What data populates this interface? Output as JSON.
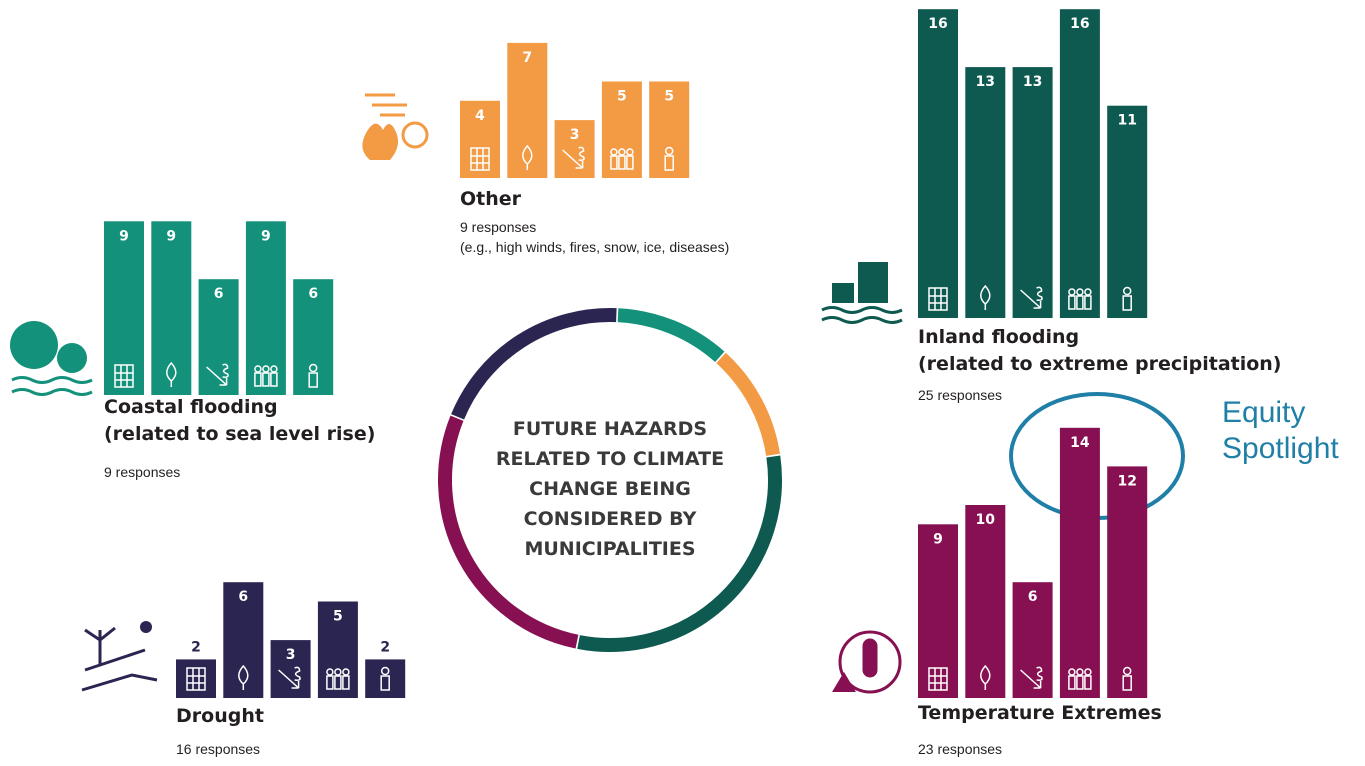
{
  "chart_data": [
    {
      "type": "pie",
      "title": [
        "FUTURE HAZARDS",
        "RELATED TO CLIMATE",
        "CHANGE BEING",
        "CONSIDERED BY",
        "MUNICIPALITIES"
      ],
      "values": [
        9,
        25,
        23,
        16,
        9
      ],
      "value_labels": [
        "9 responses",
        "25 responses",
        "23 responses",
        "16 responses",
        "9 responses"
      ],
      "colors": [
        "#f39a45",
        "#0e5a50",
        "#861052",
        "#2b2552",
        "#14917b"
      ]
    },
    {
      "type": "bar",
      "title": [
        "Other"
      ],
      "note": "(e.g., high winds, fires, snow, ice, diseases)",
      "values": [
        4,
        7,
        3,
        5,
        5
      ],
      "color": "#f39a45"
    },
    {
      "type": "bar",
      "title": [
        "Inland flooding",
        "(related to extreme precipitation)"
      ],
      "values": [
        16,
        13,
        13,
        16,
        11
      ],
      "color": "#0e5a50"
    },
    {
      "type": "bar",
      "title": [
        "Temperature Extremes"
      ],
      "values": [
        9,
        10,
        6,
        14,
        12
      ],
      "color": "#861052",
      "annotation": [
        "Equity",
        "Spotlight"
      ]
    },
    {
      "type": "bar",
      "title": [
        "Drought"
      ],
      "values": [
        2,
        6,
        3,
        5,
        2
      ],
      "color": "#2b2552"
    },
    {
      "type": "bar",
      "title": [
        "Coastal flooding",
        "(related to sea level rise)"
      ],
      "values": [
        9,
        9,
        6,
        9,
        6
      ],
      "color": "#14917b"
    }
  ]
}
